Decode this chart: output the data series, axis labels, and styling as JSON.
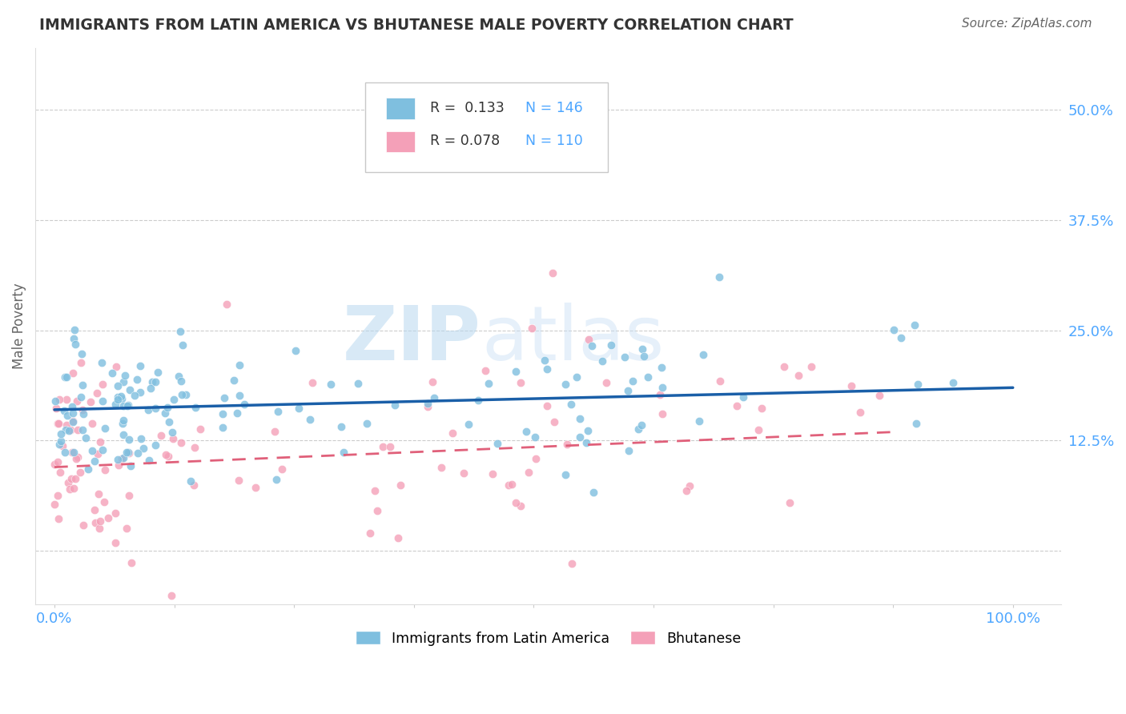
{
  "title": "IMMIGRANTS FROM LATIN AMERICA VS BHUTANESE MALE POVERTY CORRELATION CHART",
  "source": "Source: ZipAtlas.com",
  "ylabel": "Male Poverty",
  "xlabel": "",
  "xlim": [
    0.0,
    1.0
  ],
  "ylim": [
    -0.06,
    0.57
  ],
  "yticks": [
    0.0,
    0.125,
    0.25,
    0.375,
    0.5
  ],
  "ytick_labels": [
    "",
    "12.5%",
    "25.0%",
    "37.5%",
    "50.0%"
  ],
  "xtick_labels": [
    "0.0%",
    "",
    "",
    "",
    "",
    "",
    "",
    "",
    "100.0%"
  ],
  "legend_r1": "R =  0.133",
  "legend_n1": "N = 146",
  "legend_r2": "R = 0.078",
  "legend_n2": "N = 110",
  "color_blue": "#7fbfdf",
  "color_pink": "#f4a0b8",
  "line_blue": "#1a5fa8",
  "line_pink": "#e0607a",
  "watermark_zip": "ZIP",
  "watermark_atlas": "atlas",
  "background_color": "#ffffff",
  "title_color": "#333333",
  "tick_color": "#4da6ff",
  "seed": 12,
  "n_blue": 146,
  "n_pink": 110,
  "blue_trend_x0": 0.0,
  "blue_trend_y0": 0.16,
  "blue_trend_x1": 1.0,
  "blue_trend_y1": 0.185,
  "pink_trend_x0": 0.0,
  "pink_trend_y0": 0.095,
  "pink_trend_x1": 0.88,
  "pink_trend_y1": 0.135
}
